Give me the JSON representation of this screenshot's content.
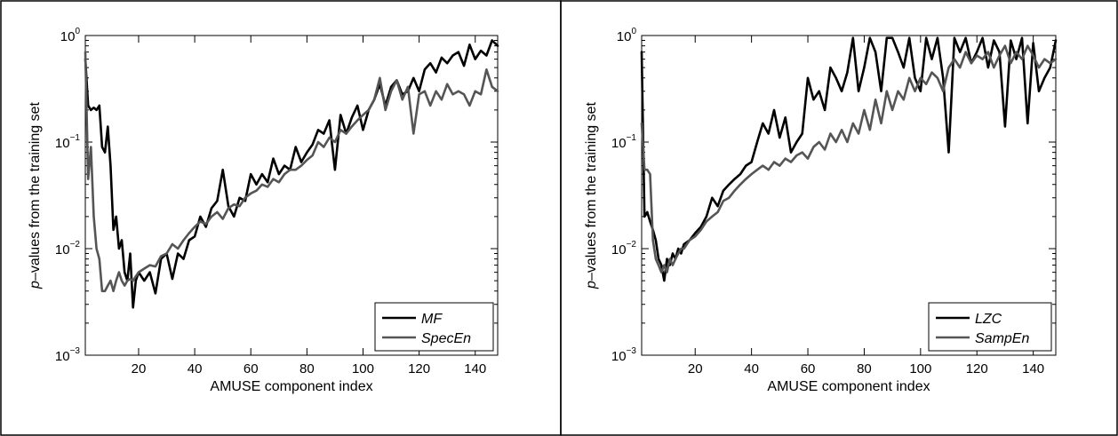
{
  "chart_data": [
    {
      "type": "line",
      "title": "",
      "xlabel": "AMUSE component index",
      "ylabel_prefix": "p",
      "ylabel_rest": "–values from the training set",
      "xlim": [
        1,
        148
      ],
      "ylim": [
        0.001,
        1
      ],
      "yscale": "log",
      "xticks": [
        20,
        40,
        60,
        80,
        100,
        120,
        140
      ],
      "yticks": [
        {
          "value": 0.001,
          "base": "10",
          "exp": "−3"
        },
        {
          "value": 0.01,
          "base": "10",
          "exp": "−2"
        },
        {
          "value": 0.1,
          "base": "10",
          "exp": "−1"
        },
        {
          "value": 1,
          "base": "10",
          "exp": "0"
        }
      ],
      "legend_position": "bottom-right",
      "series": [
        {
          "name": "MF",
          "color": "#000000",
          "x": [
            1,
            2,
            3,
            4,
            5,
            6,
            7,
            8,
            9,
            10,
            11,
            12,
            13,
            14,
            15,
            16,
            17,
            18,
            19,
            20,
            22,
            24,
            26,
            28,
            30,
            32,
            34,
            36,
            38,
            40,
            42,
            44,
            46,
            48,
            50,
            52,
            54,
            56,
            58,
            60,
            62,
            64,
            66,
            68,
            70,
            72,
            74,
            76,
            78,
            80,
            82,
            84,
            86,
            88,
            90,
            92,
            94,
            96,
            98,
            100,
            102,
            104,
            106,
            108,
            110,
            112,
            114,
            116,
            118,
            120,
            122,
            124,
            126,
            128,
            130,
            132,
            134,
            136,
            138,
            140,
            142,
            144,
            146,
            148
          ],
          "y": [
            0.6,
            0.22,
            0.2,
            0.21,
            0.2,
            0.22,
            0.09,
            0.08,
            0.14,
            0.06,
            0.015,
            0.02,
            0.01,
            0.012,
            0.006,
            0.005,
            0.009,
            0.0028,
            0.005,
            0.006,
            0.005,
            0.006,
            0.0038,
            0.008,
            0.009,
            0.0052,
            0.009,
            0.008,
            0.012,
            0.013,
            0.02,
            0.016,
            0.024,
            0.028,
            0.055,
            0.025,
            0.02,
            0.03,
            0.028,
            0.05,
            0.04,
            0.05,
            0.042,
            0.07,
            0.05,
            0.06,
            0.055,
            0.09,
            0.065,
            0.08,
            0.095,
            0.13,
            0.12,
            0.16,
            0.055,
            0.18,
            0.12,
            0.17,
            0.22,
            0.13,
            0.2,
            0.25,
            0.35,
            0.22,
            0.33,
            0.38,
            0.28,
            0.3,
            0.4,
            0.3,
            0.48,
            0.55,
            0.45,
            0.62,
            0.55,
            0.65,
            0.7,
            0.52,
            0.82,
            0.6,
            0.72,
            0.65,
            0.9,
            0.8
          ]
        },
        {
          "name": "SpecEn",
          "color": "#555555",
          "x": [
            1,
            2,
            3,
            4,
            5,
            6,
            7,
            8,
            9,
            10,
            11,
            12,
            13,
            14,
            15,
            16,
            17,
            18,
            19,
            20,
            22,
            24,
            26,
            28,
            30,
            32,
            34,
            36,
            38,
            40,
            42,
            44,
            46,
            48,
            50,
            52,
            54,
            56,
            58,
            60,
            62,
            64,
            66,
            68,
            70,
            72,
            74,
            76,
            78,
            80,
            82,
            84,
            86,
            88,
            90,
            92,
            94,
            96,
            98,
            100,
            102,
            104,
            106,
            108,
            110,
            112,
            114,
            116,
            118,
            120,
            122,
            124,
            126,
            128,
            130,
            132,
            134,
            136,
            138,
            140,
            142,
            144,
            146,
            148
          ],
          "y": [
            0.7,
            0.045,
            0.09,
            0.02,
            0.01,
            0.008,
            0.004,
            0.004,
            0.0045,
            0.005,
            0.004,
            0.005,
            0.006,
            0.005,
            0.0045,
            0.005,
            0.0052,
            0.005,
            0.0055,
            0.006,
            0.0065,
            0.007,
            0.0068,
            0.0085,
            0.009,
            0.011,
            0.01,
            0.012,
            0.014,
            0.016,
            0.018,
            0.017,
            0.02,
            0.022,
            0.019,
            0.024,
            0.026,
            0.025,
            0.03,
            0.033,
            0.035,
            0.04,
            0.038,
            0.045,
            0.042,
            0.05,
            0.055,
            0.055,
            0.06,
            0.068,
            0.075,
            0.1,
            0.09,
            0.11,
            0.1,
            0.13,
            0.12,
            0.14,
            0.16,
            0.18,
            0.2,
            0.25,
            0.4,
            0.2,
            0.3,
            0.38,
            0.25,
            0.33,
            0.12,
            0.28,
            0.3,
            0.22,
            0.3,
            0.25,
            0.35,
            0.28,
            0.3,
            0.28,
            0.22,
            0.3,
            0.28,
            0.48,
            0.33,
            0.3
          ]
        }
      ]
    },
    {
      "type": "line",
      "title": "",
      "xlabel": "AMUSE component index",
      "ylabel_prefix": "p",
      "ylabel_rest": "–values from the training set",
      "xlim": [
        1,
        148
      ],
      "ylim": [
        0.001,
        1
      ],
      "yscale": "log",
      "xticks": [
        20,
        40,
        60,
        80,
        100,
        120,
        140
      ],
      "yticks": [
        {
          "value": 0.001,
          "base": "10",
          "exp": "−3"
        },
        {
          "value": 0.01,
          "base": "10",
          "exp": "−2"
        },
        {
          "value": 0.1,
          "base": "10",
          "exp": "−1"
        },
        {
          "value": 1,
          "base": "10",
          "exp": "0"
        }
      ],
      "legend_position": "bottom-right",
      "series": [
        {
          "name": "LZC",
          "color": "#000000",
          "x": [
            1,
            2,
            3,
            4,
            5,
            6,
            7,
            8,
            9,
            10,
            11,
            12,
            13,
            14,
            15,
            16,
            18,
            20,
            22,
            24,
            26,
            28,
            30,
            32,
            34,
            36,
            38,
            40,
            42,
            44,
            46,
            48,
            50,
            52,
            54,
            56,
            58,
            60,
            62,
            64,
            66,
            68,
            70,
            72,
            74,
            76,
            78,
            80,
            82,
            84,
            86,
            88,
            90,
            92,
            94,
            96,
            98,
            100,
            102,
            104,
            106,
            108,
            110,
            112,
            114,
            116,
            118,
            120,
            122,
            124,
            126,
            128,
            130,
            132,
            134,
            136,
            138,
            140,
            142,
            144,
            146,
            148
          ],
          "y": [
            0.7,
            0.02,
            0.022,
            0.018,
            0.015,
            0.012,
            0.008,
            0.007,
            0.005,
            0.008,
            0.007,
            0.009,
            0.008,
            0.01,
            0.009,
            0.011,
            0.012,
            0.014,
            0.016,
            0.02,
            0.03,
            0.025,
            0.035,
            0.04,
            0.045,
            0.05,
            0.06,
            0.065,
            0.1,
            0.15,
            0.12,
            0.2,
            0.11,
            0.17,
            0.08,
            0.1,
            0.12,
            0.4,
            0.25,
            0.3,
            0.2,
            0.5,
            0.4,
            0.3,
            0.45,
            0.95,
            0.3,
            0.5,
            0.95,
            0.7,
            0.3,
            0.95,
            0.95,
            0.7,
            0.5,
            0.95,
            0.4,
            0.3,
            0.95,
            0.6,
            0.95,
            0.4,
            0.08,
            0.95,
            0.7,
            0.95,
            0.55,
            0.7,
            0.95,
            0.5,
            0.9,
            0.7,
            0.14,
            0.9,
            0.6,
            0.95,
            0.15,
            0.85,
            0.3,
            0.4,
            0.5,
            0.9
          ]
        },
        {
          "name": "SampEn",
          "color": "#555555",
          "x": [
            1,
            2,
            3,
            4,
            5,
            6,
            7,
            8,
            9,
            10,
            11,
            12,
            13,
            14,
            15,
            16,
            18,
            20,
            22,
            24,
            26,
            28,
            30,
            32,
            34,
            36,
            38,
            40,
            42,
            44,
            46,
            48,
            50,
            52,
            54,
            56,
            58,
            60,
            62,
            64,
            66,
            68,
            70,
            72,
            74,
            76,
            78,
            80,
            82,
            84,
            86,
            88,
            90,
            92,
            94,
            96,
            98,
            100,
            102,
            104,
            106,
            108,
            110,
            112,
            114,
            116,
            118,
            120,
            122,
            124,
            126,
            128,
            130,
            132,
            134,
            136,
            138,
            140,
            142,
            144,
            146,
            148
          ],
          "y": [
            0.15,
            0.055,
            0.055,
            0.05,
            0.012,
            0.008,
            0.007,
            0.006,
            0.007,
            0.006,
            0.008,
            0.007,
            0.008,
            0.009,
            0.01,
            0.01,
            0.012,
            0.013,
            0.015,
            0.018,
            0.02,
            0.022,
            0.028,
            0.03,
            0.035,
            0.04,
            0.045,
            0.05,
            0.055,
            0.06,
            0.055,
            0.065,
            0.06,
            0.07,
            0.065,
            0.075,
            0.08,
            0.07,
            0.09,
            0.1,
            0.085,
            0.12,
            0.1,
            0.13,
            0.1,
            0.15,
            0.12,
            0.2,
            0.13,
            0.25,
            0.15,
            0.3,
            0.2,
            0.3,
            0.25,
            0.4,
            0.3,
            0.4,
            0.35,
            0.45,
            0.4,
            0.3,
            0.5,
            0.6,
            0.5,
            0.7,
            0.55,
            0.65,
            0.6,
            0.7,
            0.5,
            0.65,
            0.8,
            0.55,
            0.7,
            0.6,
            0.8,
            0.65,
            0.5,
            0.6,
            0.55,
            0.6
          ]
        }
      ]
    }
  ]
}
